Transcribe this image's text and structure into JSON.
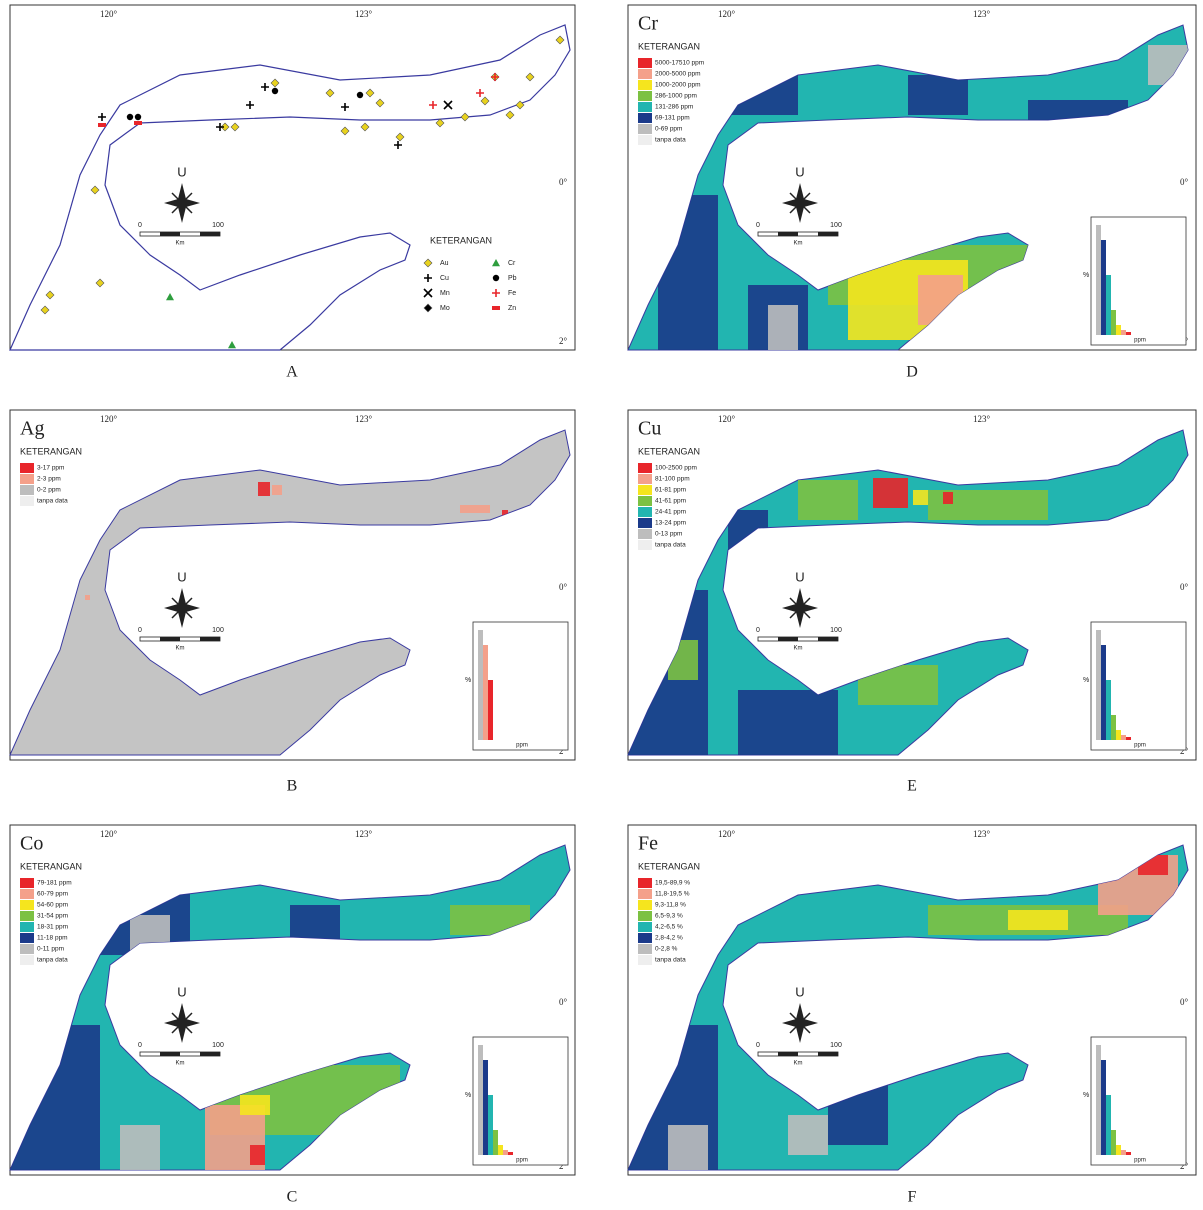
{
  "panels": [
    {
      "letter": "A",
      "legend_title": "KETERANGAN",
      "legend": [
        {
          "label": "Au",
          "symbol": "diamond",
          "color": "#e8d21e"
        },
        {
          "label": "Cr",
          "symbol": "triangle",
          "color": "#2e9e3e"
        },
        {
          "label": "Cu",
          "symbol": "plus",
          "color": "#000000"
        },
        {
          "label": "Pb",
          "symbol": "circle",
          "color": "#000000"
        },
        {
          "label": "Mn",
          "symbol": "cross",
          "color": "#000000"
        },
        {
          "label": "Fe",
          "symbol": "plus",
          "color": "#e8252a"
        },
        {
          "label": "Mo",
          "symbol": "diamond",
          "color": "#000000"
        },
        {
          "label": "Zn",
          "symbol": "bar",
          "color": "#e8252a"
        }
      ],
      "lon_labels": [
        "120°",
        "123°"
      ],
      "lat_labels": [
        "0°",
        "2°"
      ],
      "scale": [
        0,
        100
      ],
      "scale_unit": "Km",
      "north": "U"
    },
    {
      "letter": "D",
      "title": "Cr",
      "legend_title": "KETERANGAN",
      "legend": [
        {
          "label": "5000-17510 ppm",
          "color": "#e8252a"
        },
        {
          "label": "2000-5000 ppm",
          "color": "#f4a08a"
        },
        {
          "label": "1000-2000 ppm",
          "color": "#f5e51e"
        },
        {
          "label": "286-1000 ppm",
          "color": "#7cc142"
        },
        {
          "label": "131-286 ppm",
          "color": "#22b5b0"
        },
        {
          "label": "69-131 ppm",
          "color": "#1b3a8a"
        },
        {
          "label": "0-69 ppm",
          "color": "#bdbdbd"
        },
        {
          "label": "tanpa data",
          "color": "#eeeeee"
        }
      ],
      "lon_labels": [
        "120°",
        "123°"
      ],
      "lat_labels": [
        "0°",
        "2°"
      ],
      "scale": [
        0,
        100
      ],
      "scale_unit": "Km",
      "north": "U",
      "histogram": {
        "y_label": "%",
        "x_label": "ppm"
      }
    },
    {
      "letter": "B",
      "title": "Ag",
      "legend_title": "KETERANGAN",
      "legend": [
        {
          "label": "3-17 ppm",
          "color": "#e8252a"
        },
        {
          "label": "2-3 ppm",
          "color": "#f4a08a"
        },
        {
          "label": "0-2 ppm",
          "color": "#bdbdbd"
        },
        {
          "label": "tanpa data",
          "color": "#eeeeee"
        }
      ],
      "lon_labels": [
        "120°",
        "123°"
      ],
      "lat_labels": [
        "0°",
        "2°"
      ],
      "scale": [
        0,
        100
      ],
      "scale_unit": "Km",
      "north": "U",
      "histogram": {
        "y_label": "%",
        "x_label": "ppm"
      }
    },
    {
      "letter": "E",
      "title": "Cu",
      "legend_title": "KETERANGAN",
      "legend": [
        {
          "label": "100-2500 ppm",
          "color": "#e8252a"
        },
        {
          "label": "81-100 ppm",
          "color": "#f4a08a"
        },
        {
          "label": "61-81 ppm",
          "color": "#f5e51e"
        },
        {
          "label": "41-61 ppm",
          "color": "#7cc142"
        },
        {
          "label": "24-41 ppm",
          "color": "#22b5b0"
        },
        {
          "label": "13-24 ppm",
          "color": "#1b3a8a"
        },
        {
          "label": "0-13 ppm",
          "color": "#bdbdbd"
        },
        {
          "label": "tanpa data",
          "color": "#eeeeee"
        }
      ],
      "lon_labels": [
        "120°",
        "123°"
      ],
      "lat_labels": [
        "0°",
        "2°"
      ],
      "scale": [
        0,
        100
      ],
      "scale_unit": "Km",
      "north": "U",
      "histogram": {
        "y_label": "%",
        "x_label": "ppm"
      }
    },
    {
      "letter": "C",
      "title": "Co",
      "legend_title": "KETERANGAN",
      "legend": [
        {
          "label": "79-181 ppm",
          "color": "#e8252a"
        },
        {
          "label": "60-79 ppm",
          "color": "#f4a08a"
        },
        {
          "label": "54-60 ppm",
          "color": "#f5e51e"
        },
        {
          "label": "31-54 ppm",
          "color": "#7cc142"
        },
        {
          "label": "18-31 ppm",
          "color": "#22b5b0"
        },
        {
          "label": "11-18 ppm",
          "color": "#1b3a8a"
        },
        {
          "label": "0-11 ppm",
          "color": "#bdbdbd"
        },
        {
          "label": "tanpa data",
          "color": "#eeeeee"
        }
      ],
      "lon_labels": [
        "120°",
        "123°"
      ],
      "lat_labels": [
        "0°",
        "2°"
      ],
      "scale": [
        0,
        100
      ],
      "scale_unit": "Km",
      "north": "U",
      "histogram": {
        "y_label": "%",
        "x_label": "ppm"
      }
    },
    {
      "letter": "F",
      "title": "Fe",
      "legend_title": "KETERANGAN",
      "legend": [
        {
          "label": "19,5-89,9 %",
          "color": "#e8252a"
        },
        {
          "label": "11,8-19,5 %",
          "color": "#f4a08a"
        },
        {
          "label": "9,3-11,8 %",
          "color": "#f5e51e"
        },
        {
          "label": "6,5-9,3 %",
          "color": "#7cc142"
        },
        {
          "label": "4,2-6,5 %",
          "color": "#22b5b0"
        },
        {
          "label": "2,8-4,2 %",
          "color": "#1b3a8a"
        },
        {
          "label": "0-2,8 %",
          "color": "#bdbdbd"
        },
        {
          "label": "tanpa data",
          "color": "#eeeeee"
        }
      ],
      "lon_labels": [
        "120°",
        "123°"
      ],
      "lat_labels": [
        "0°",
        "2°"
      ],
      "scale": [
        0,
        100
      ],
      "scale_unit": "Km",
      "north": "U",
      "histogram": {
        "y_label": "%",
        "x_label": "ppm"
      }
    }
  ]
}
